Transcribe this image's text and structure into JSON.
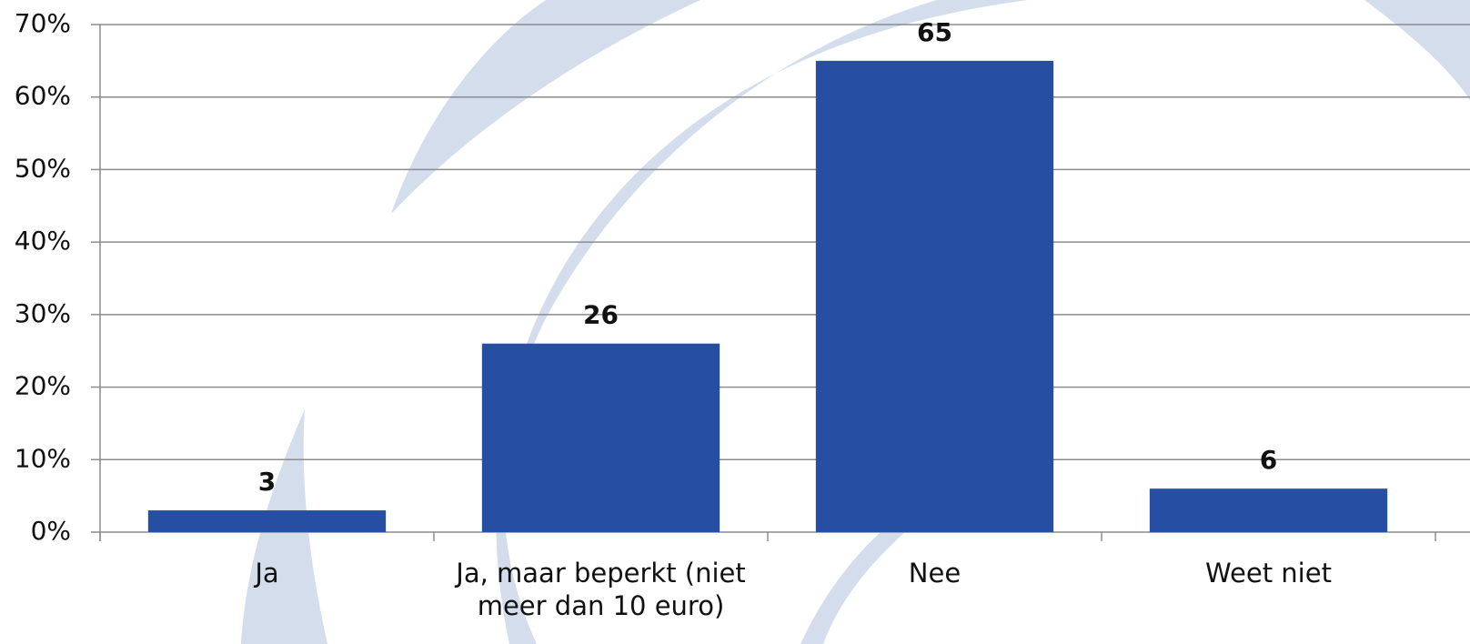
{
  "chart_data": {
    "type": "bar",
    "categories": [
      "Ja",
      "Ja, maar beperkt (niet meer dan 10 euro)",
      "Nee",
      "Weet niet"
    ],
    "values": [
      3,
      26,
      65,
      6
    ],
    "color": "#264fa3",
    "ylim": [
      0,
      70
    ],
    "yticks": [
      {
        "value": 0,
        "label": "0%"
      },
      {
        "value": 10,
        "label": "10%"
      },
      {
        "value": 20,
        "label": "20%"
      },
      {
        "value": 30,
        "label": "30%"
      },
      {
        "value": 40,
        "label": "40%"
      },
      {
        "value": 50,
        "label": "50%"
      },
      {
        "value": 60,
        "label": "60%"
      },
      {
        "value": 70,
        "label": "70%"
      }
    ],
    "grid": true
  }
}
